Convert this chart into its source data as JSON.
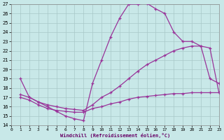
{
  "xlabel": "Windchill (Refroidissement éolien,°C)",
  "xlim": [
    0,
    23
  ],
  "ylim": [
    14,
    27
  ],
  "xticks": [
    0,
    1,
    2,
    3,
    4,
    5,
    6,
    7,
    8,
    9,
    10,
    11,
    12,
    13,
    14,
    15,
    16,
    17,
    18,
    19,
    20,
    21,
    22,
    23
  ],
  "yticks": [
    14,
    15,
    16,
    17,
    18,
    19,
    20,
    21,
    22,
    23,
    24,
    25,
    26,
    27
  ],
  "bg_color": "#c8e8e8",
  "grid_color": "#a8c8c8",
  "line_color": "#993399",
  "line1_x": [
    1,
    2,
    3,
    4,
    5,
    6,
    7,
    8,
    9,
    10,
    11,
    12,
    13,
    14,
    15,
    16,
    17,
    18,
    19,
    20,
    21,
    22,
    23
  ],
  "line1_y": [
    19.0,
    17.0,
    16.5,
    16.0,
    15.5,
    15.0,
    14.7,
    14.5,
    18.5,
    21.0,
    23.5,
    25.5,
    27.0,
    27.0,
    27.1,
    26.5,
    26.0,
    24.0,
    23.0,
    23.0,
    22.5,
    19.0,
    18.5
  ],
  "line2_x": [
    1,
    2,
    3,
    4,
    5,
    6,
    7,
    8,
    9,
    10,
    11,
    12,
    13,
    14,
    15,
    16,
    17,
    18,
    19,
    20,
    21,
    22,
    23
  ],
  "line2_y": [
    17.3,
    17.0,
    16.5,
    16.2,
    16.0,
    15.8,
    15.7,
    15.6,
    16.2,
    17.0,
    17.5,
    18.2,
    19.0,
    19.8,
    20.5,
    21.0,
    21.5,
    22.0,
    22.3,
    22.5,
    22.5,
    22.3,
    17.5
  ],
  "line3_x": [
    1,
    2,
    3,
    4,
    5,
    6,
    7,
    8,
    9,
    10,
    11,
    12,
    13,
    14,
    15,
    16,
    17,
    18,
    19,
    20,
    21,
    22,
    23
  ],
  "line3_y": [
    17.0,
    16.7,
    16.2,
    15.8,
    15.6,
    15.5,
    15.4,
    15.4,
    15.8,
    16.0,
    16.3,
    16.5,
    16.8,
    17.0,
    17.1,
    17.2,
    17.3,
    17.4,
    17.4,
    17.5,
    17.5,
    17.5,
    17.5
  ]
}
